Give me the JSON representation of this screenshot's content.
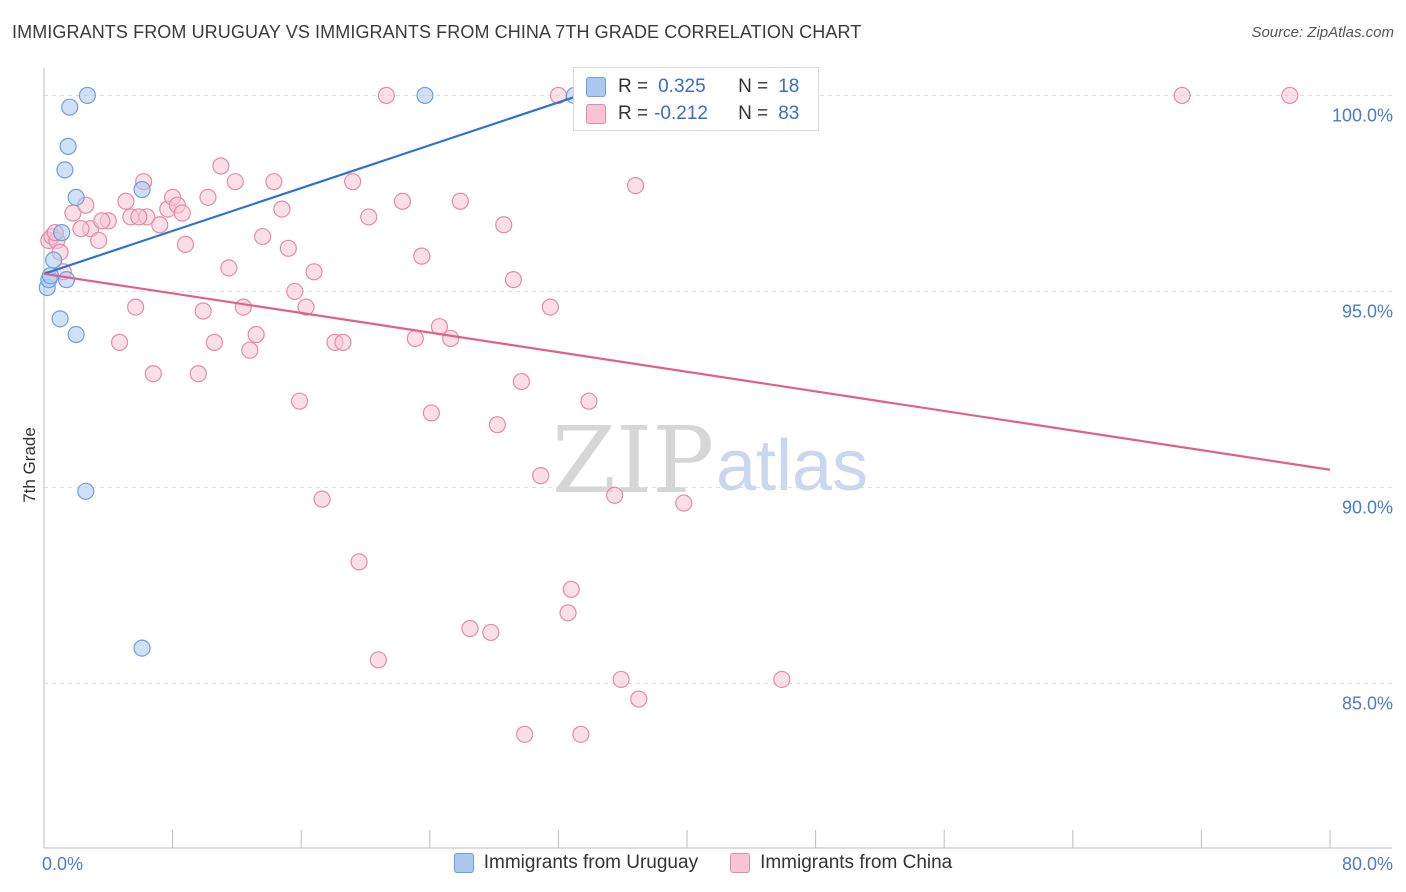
{
  "title": "IMMIGRANTS FROM URUGUAY VS IMMIGRANTS FROM CHINA 7TH GRADE CORRELATION CHART",
  "source": "Source: ZipAtlas.com",
  "watermark": {
    "zip": "ZIP",
    "atlas": "atlas"
  },
  "colors": {
    "uruguay_fill": "#aac8f0",
    "uruguay_stroke": "#6f9fdc",
    "uruguay_line": "#2f74cc",
    "china_fill": "#f7c5d4",
    "china_stroke": "#e68aa6",
    "china_line": "#e0608b",
    "accent_text": "#3a6fc0",
    "grid": "#dddddd"
  },
  "legend": {
    "uruguay": {
      "r_label": "R =",
      "r_value": "0.325",
      "n_label": "N =",
      "n_value": "18"
    },
    "china": {
      "r_label": "R =",
      "r_value": "-0.212",
      "n_label": "N =",
      "n_value": "83"
    }
  },
  "chart_data": {
    "type": "scatter",
    "title": "IMMIGRANTS FROM URUGUAY VS IMMIGRANTS FROM CHINA 7TH GRADE CORRELATION CHART",
    "xlabel": "",
    "ylabel": "7th Grade",
    "xlim": [
      0,
      80
    ],
    "ylim": [
      80.8,
      100.7
    ],
    "x_tick_labels": [
      "0.0%",
      "80.0%"
    ],
    "y_ticks": [
      85,
      90,
      95,
      100
    ],
    "y_tick_labels": [
      "85.0%",
      "90.0%",
      "95.0%",
      "100.0%"
    ],
    "grid": true,
    "legend_position": "bottom-center",
    "series": [
      {
        "name": "Immigrants from Uruguay",
        "r": 0.325,
        "n": 18,
        "trend": {
          "x": [
            0,
            33.3
          ],
          "y": [
            95.45,
            100.0
          ]
        },
        "points": [
          {
            "x": 0.2,
            "y": 95.1
          },
          {
            "x": 0.3,
            "y": 95.3
          },
          {
            "x": 0.4,
            "y": 95.4
          },
          {
            "x": 0.6,
            "y": 95.8
          },
          {
            "x": 1.0,
            "y": 94.3
          },
          {
            "x": 1.1,
            "y": 96.5
          },
          {
            "x": 1.3,
            "y": 98.1
          },
          {
            "x": 1.5,
            "y": 98.7
          },
          {
            "x": 1.6,
            "y": 99.7
          },
          {
            "x": 1.4,
            "y": 95.3
          },
          {
            "x": 2.0,
            "y": 97.4
          },
          {
            "x": 2.0,
            "y": 93.9
          },
          {
            "x": 2.7,
            "y": 100.0
          },
          {
            "x": 2.6,
            "y": 89.9
          },
          {
            "x": 6.1,
            "y": 97.6
          },
          {
            "x": 6.1,
            "y": 85.9
          },
          {
            "x": 23.7,
            "y": 100.0
          },
          {
            "x": 33.0,
            "y": 100.0
          }
        ]
      },
      {
        "name": "Immigrants from China",
        "r": -0.212,
        "n": 83,
        "trend": {
          "x": [
            0,
            80
          ],
          "y": [
            95.45,
            90.45
          ]
        },
        "points": [
          {
            "x": 0.3,
            "y": 96.3
          },
          {
            "x": 0.5,
            "y": 96.4
          },
          {
            "x": 0.8,
            "y": 96.3
          },
          {
            "x": 1.0,
            "y": 96.0
          },
          {
            "x": 1.2,
            "y": 95.5
          },
          {
            "x": 1.8,
            "y": 97.0
          },
          {
            "x": 2.6,
            "y": 97.2
          },
          {
            "x": 2.9,
            "y": 96.6
          },
          {
            "x": 3.4,
            "y": 96.3
          },
          {
            "x": 4.0,
            "y": 96.8
          },
          {
            "x": 4.7,
            "y": 93.7
          },
          {
            "x": 5.1,
            "y": 97.3
          },
          {
            "x": 5.4,
            "y": 96.9
          },
          {
            "x": 5.7,
            "y": 94.6
          },
          {
            "x": 6.2,
            "y": 97.8
          },
          {
            "x": 6.4,
            "y": 96.9
          },
          {
            "x": 6.8,
            "y": 92.9
          },
          {
            "x": 7.2,
            "y": 96.7
          },
          {
            "x": 7.7,
            "y": 97.1
          },
          {
            "x": 8.0,
            "y": 97.4
          },
          {
            "x": 8.3,
            "y": 97.2
          },
          {
            "x": 8.6,
            "y": 97.0
          },
          {
            "x": 8.8,
            "y": 96.2
          },
          {
            "x": 9.6,
            "y": 92.9
          },
          {
            "x": 9.9,
            "y": 94.5
          },
          {
            "x": 10.2,
            "y": 97.4
          },
          {
            "x": 10.6,
            "y": 93.7
          },
          {
            "x": 11.0,
            "y": 98.2
          },
          {
            "x": 11.5,
            "y": 95.6
          },
          {
            "x": 11.9,
            "y": 97.8
          },
          {
            "x": 12.4,
            "y": 94.6
          },
          {
            "x": 12.8,
            "y": 93.5
          },
          {
            "x": 13.2,
            "y": 93.9
          },
          {
            "x": 13.6,
            "y": 96.4
          },
          {
            "x": 14.3,
            "y": 97.8
          },
          {
            "x": 14.8,
            "y": 97.1
          },
          {
            "x": 15.2,
            "y": 96.1
          },
          {
            "x": 15.6,
            "y": 95.0
          },
          {
            "x": 15.9,
            "y": 92.2
          },
          {
            "x": 16.3,
            "y": 94.6
          },
          {
            "x": 16.8,
            "y": 95.5
          },
          {
            "x": 17.3,
            "y": 89.7
          },
          {
            "x": 18.1,
            "y": 93.7
          },
          {
            "x": 18.6,
            "y": 93.7
          },
          {
            "x": 19.2,
            "y": 97.8
          },
          {
            "x": 19.6,
            "y": 88.1
          },
          {
            "x": 20.2,
            "y": 96.9
          },
          {
            "x": 20.8,
            "y": 85.6
          },
          {
            "x": 21.3,
            "y": 100.0
          },
          {
            "x": 22.3,
            "y": 97.3
          },
          {
            "x": 23.1,
            "y": 93.8
          },
          {
            "x": 23.5,
            "y": 95.9
          },
          {
            "x": 24.1,
            "y": 91.9
          },
          {
            "x": 24.6,
            "y": 94.1
          },
          {
            "x": 25.3,
            "y": 93.8
          },
          {
            "x": 25.9,
            "y": 97.3
          },
          {
            "x": 26.5,
            "y": 86.4
          },
          {
            "x": 27.8,
            "y": 86.3
          },
          {
            "x": 28.2,
            "y": 91.6
          },
          {
            "x": 28.6,
            "y": 96.7
          },
          {
            "x": 29.2,
            "y": 95.3
          },
          {
            "x": 29.7,
            "y": 92.7
          },
          {
            "x": 29.9,
            "y": 83.7
          },
          {
            "x": 30.9,
            "y": 90.3
          },
          {
            "x": 31.5,
            "y": 94.6
          },
          {
            "x": 32.0,
            "y": 100.0
          },
          {
            "x": 32.6,
            "y": 86.8
          },
          {
            "x": 32.8,
            "y": 87.4
          },
          {
            "x": 33.4,
            "y": 83.7
          },
          {
            "x": 33.9,
            "y": 92.2
          },
          {
            "x": 35.1,
            "y": 100.0
          },
          {
            "x": 35.5,
            "y": 89.8
          },
          {
            "x": 35.9,
            "y": 85.1
          },
          {
            "x": 36.8,
            "y": 97.7
          },
          {
            "x": 37.0,
            "y": 84.6
          },
          {
            "x": 39.8,
            "y": 89.6
          },
          {
            "x": 45.9,
            "y": 85.1
          },
          {
            "x": 70.8,
            "y": 100.0
          },
          {
            "x": 77.5,
            "y": 100.0
          },
          {
            "x": 0.7,
            "y": 96.5
          },
          {
            "x": 2.3,
            "y": 96.6
          },
          {
            "x": 3.6,
            "y": 96.8
          },
          {
            "x": 5.9,
            "y": 96.9
          }
        ]
      }
    ]
  }
}
